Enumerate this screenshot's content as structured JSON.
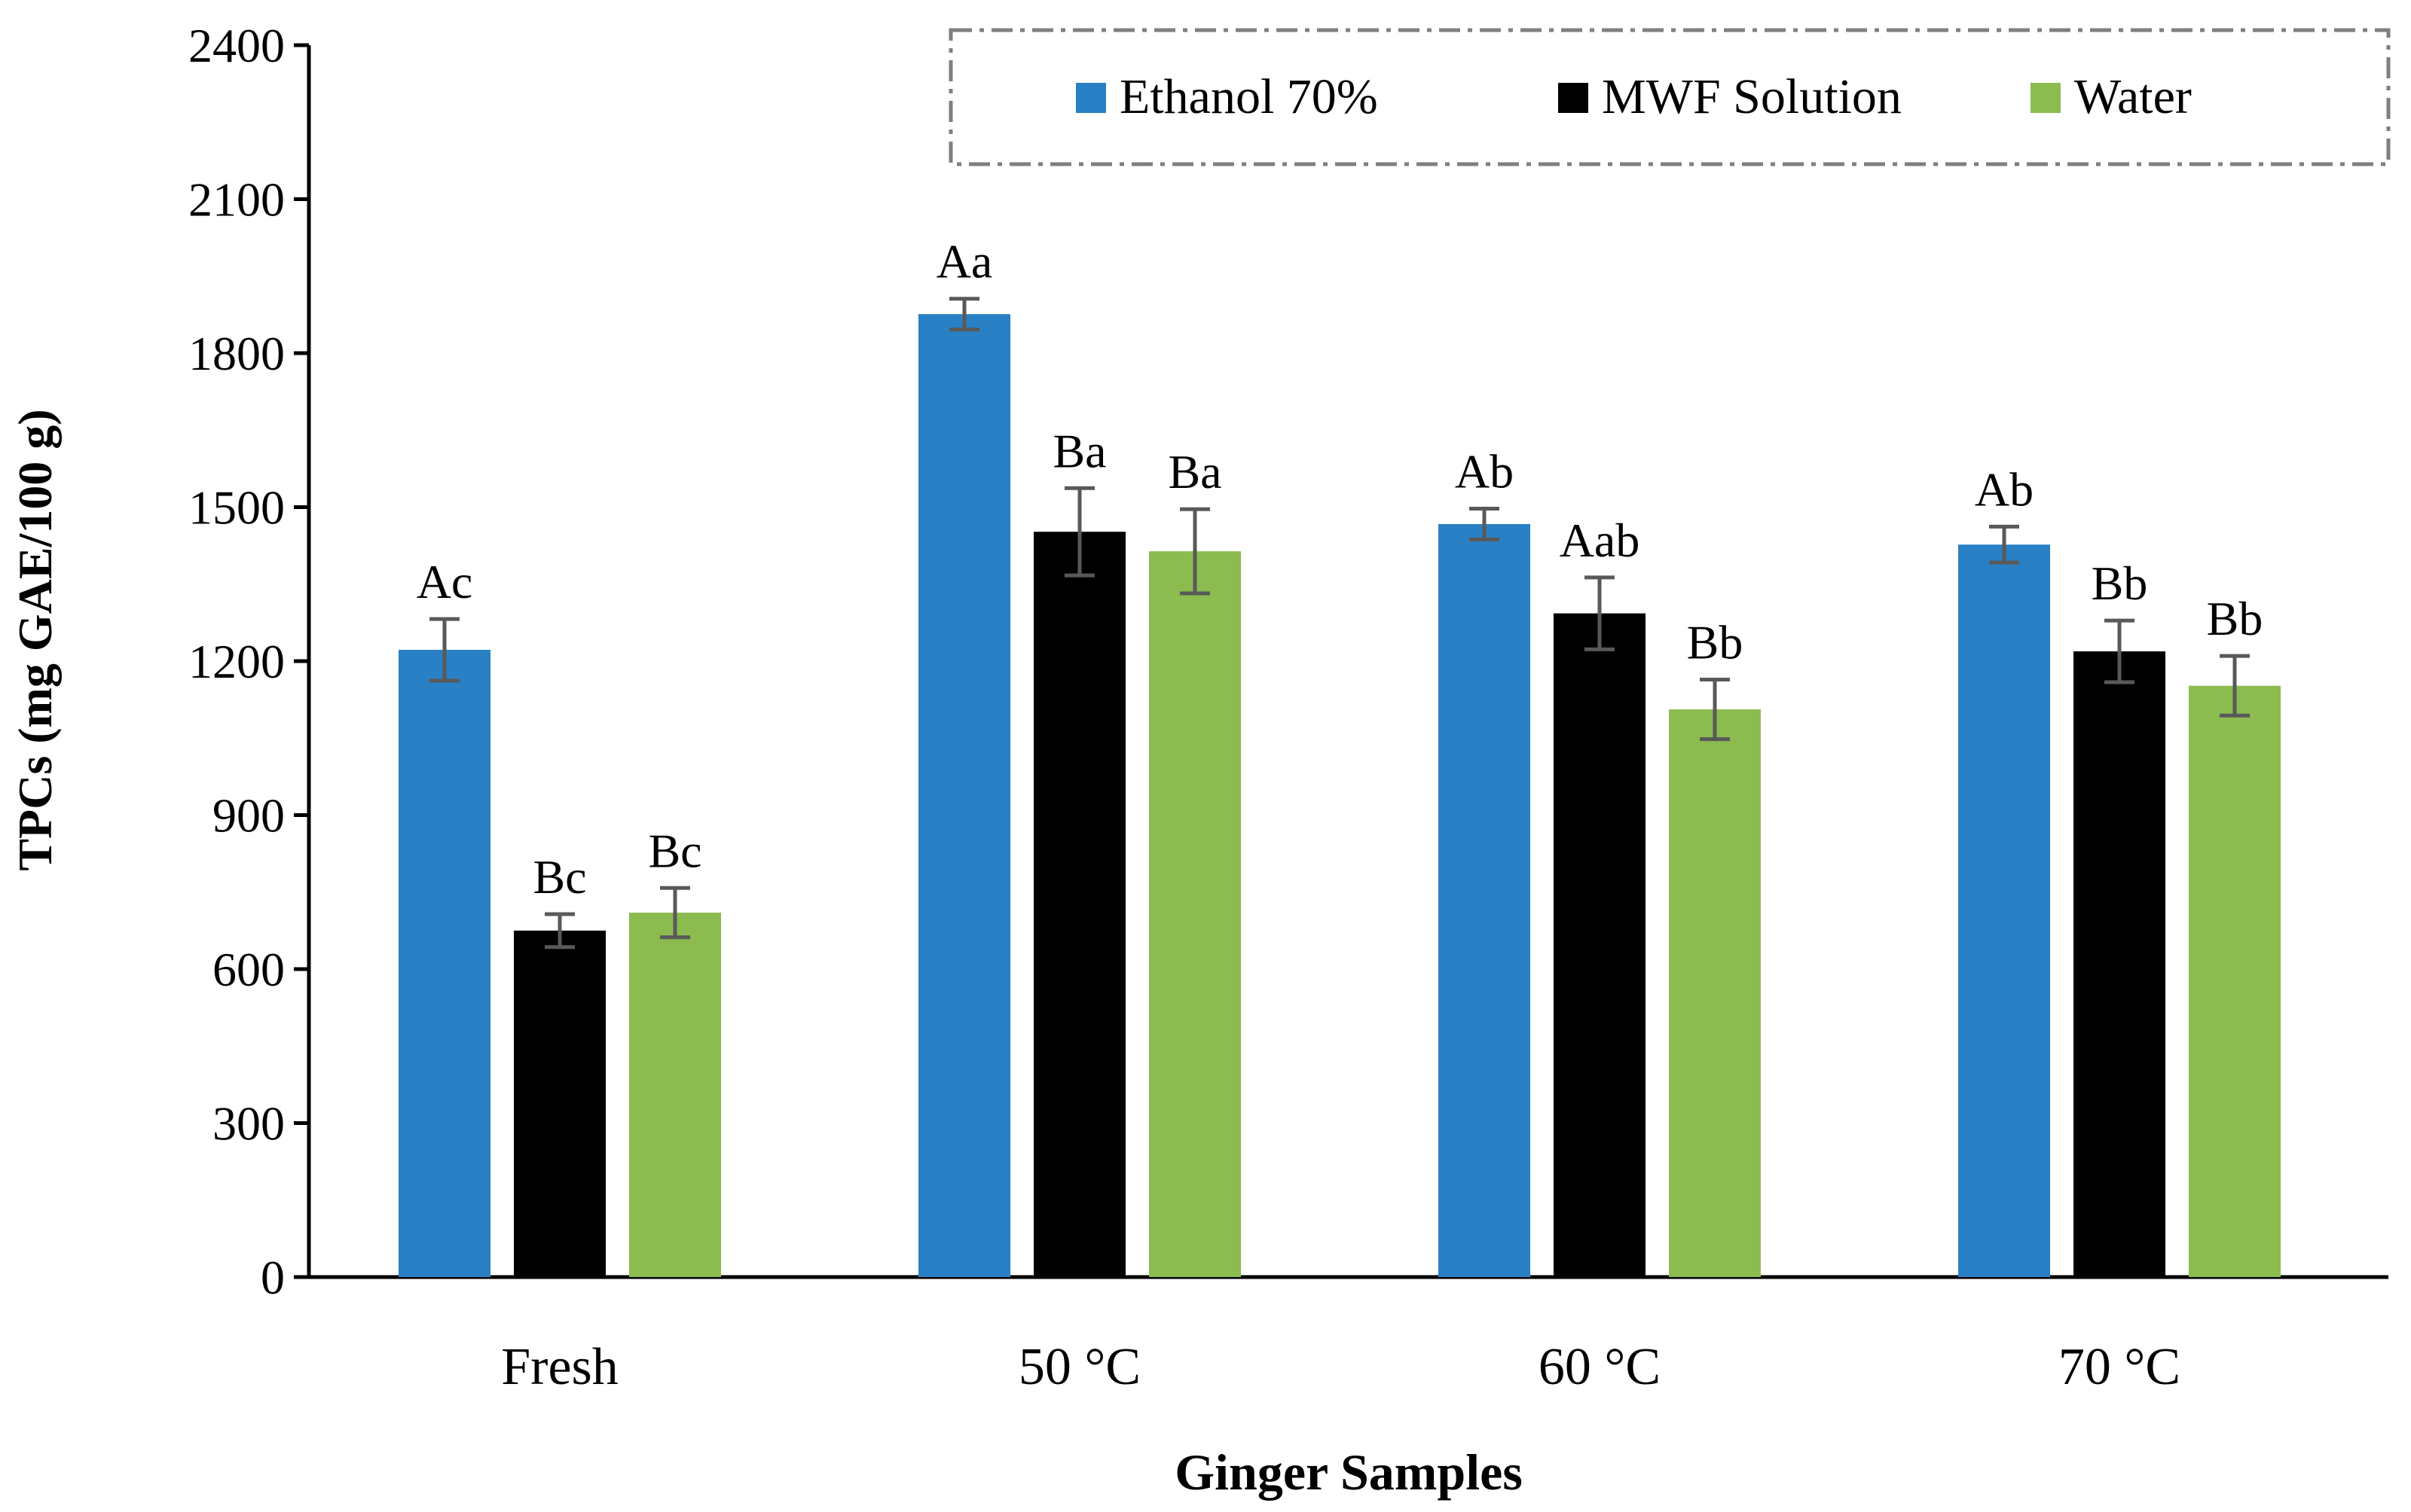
{
  "chart_data": {
    "type": "bar",
    "title": "",
    "xlabel": "Ginger Samples",
    "ylabel": "TPCs (mg GAE/100 g)",
    "ylim": [
      0,
      2400
    ],
    "yticks": [
      0,
      300,
      600,
      900,
      1200,
      1500,
      1800,
      2100,
      2400
    ],
    "grid": false,
    "legend_position": "top-right",
    "categories": [
      "Fresh",
      "50 °C",
      "60 °C",
      "70 °C"
    ],
    "series": [
      {
        "name": "Ethanol 70%",
        "color": "#2980C4",
        "values": [
          1222,
          1876,
          1467,
          1427
        ],
        "errors": [
          60,
          30,
          30,
          35
        ],
        "labels": [
          "Ac",
          "Aa",
          "Ab",
          "Ab"
        ]
      },
      {
        "name": "MWF Solution",
        "color": "#000000",
        "values": [
          675,
          1452,
          1293,
          1219
        ],
        "errors": [
          32,
          85,
          70,
          60
        ],
        "labels": [
          "Bc",
          "Ba",
          "Aab",
          "Bb"
        ]
      },
      {
        "name": "Water",
        "color": "#8CBB50",
        "values": [
          710,
          1414,
          1106,
          1152
        ],
        "errors": [
          48,
          82,
          58,
          58
        ],
        "labels": [
          "Bc",
          "Ba",
          "Bb",
          "Bb"
        ]
      }
    ]
  }
}
